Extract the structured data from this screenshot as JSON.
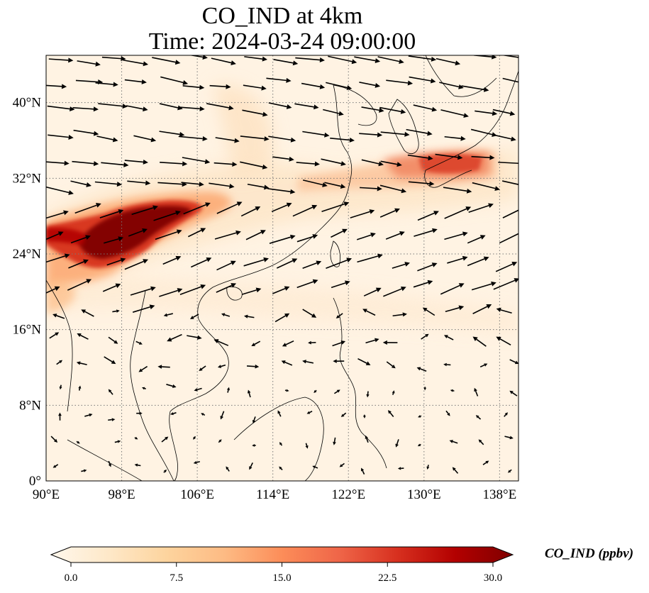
{
  "title_line1": "CO_IND at 4km",
  "title_line2": "Time: 2024-03-24 09:00:00",
  "lon_labels": [
    "90°E",
    "98°E",
    "106°E",
    "114°E",
    "122°E",
    "130°E",
    "138°E"
  ],
  "lat_labels": [
    "0°",
    "8°N",
    "16°N",
    "24°N",
    "32°N",
    "40°N"
  ],
  "lon_values": [
    90,
    98,
    106,
    114,
    122,
    130,
    138
  ],
  "lat_values": [
    0,
    8,
    16,
    24,
    32,
    40
  ],
  "extent": {
    "lon_min": 90,
    "lon_max": 140,
    "lat_min": 0,
    "lat_max": 45
  },
  "colorbar": {
    "label": "CO_IND (ppbv)",
    "ticks": [
      "0.0",
      "7.5",
      "15.0",
      "22.5",
      "30.0"
    ],
    "tick_values": [
      0,
      7.5,
      15,
      22.5,
      30
    ],
    "min": 0,
    "max": 30,
    "extend": "both",
    "colormap": "OrRd",
    "colors": [
      "#fff7ec",
      "#fee8c8",
      "#fdd49e",
      "#fdbb84",
      "#fc8d59",
      "#ef6548",
      "#d7301f",
      "#b30000",
      "#7f0000"
    ]
  },
  "grid": {
    "style": "dotted",
    "color": "#777777"
  },
  "coastline_color": "#000000",
  "wind_vectors": "black arrows"
}
